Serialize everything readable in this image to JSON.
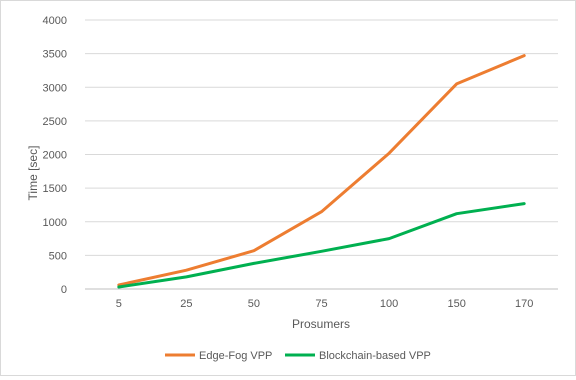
{
  "chart_data": {
    "type": "line",
    "title": "",
    "xlabel": "Prosumers",
    "ylabel": "Time [sec]",
    "categories": [
      "5",
      "25",
      "50",
      "75",
      "100",
      "150",
      "170"
    ],
    "ylim": [
      0,
      4000
    ],
    "yticks": [
      0,
      500,
      1000,
      1500,
      2000,
      2500,
      3000,
      3500,
      4000
    ],
    "grid": true,
    "legend_position": "bottom",
    "series": [
      {
        "name": "Edge-Fog VPP",
        "color": "#ed7d31",
        "values": [
          60,
          280,
          570,
          1150,
          2020,
          3050,
          3470
        ]
      },
      {
        "name": "Blockchain-based VPP",
        "color": "#00b050",
        "values": [
          30,
          180,
          380,
          560,
          750,
          1120,
          1270
        ]
      }
    ]
  }
}
